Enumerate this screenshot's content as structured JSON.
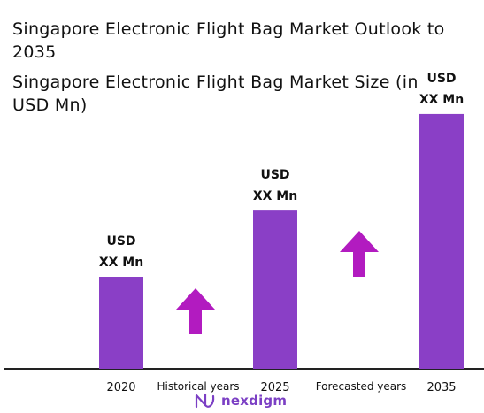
{
  "title": "Singapore Electronic Flight Bag Market Outlook to 2035",
  "subtitle": "Singapore Electronic Flight Bag Market Size (in USD Mn)",
  "colors": {
    "bar": "#8a3fc6",
    "arrow": "#b21bc0",
    "axis": "#222222"
  },
  "brand": {
    "name": "nexdigm",
    "icon": "nexdigm-logo-icon"
  },
  "chart_data": {
    "type": "bar",
    "categories": [
      "2020",
      "2025",
      "2035"
    ],
    "values": [
      1.0,
      1.72,
      2.77
    ],
    "value_unit": "relative height (actual values not disclosed)",
    "bar_labels": [
      [
        "USD",
        "XX Mn"
      ],
      [
        "USD",
        "XX Mn"
      ],
      [
        "USD",
        "XX Mn"
      ]
    ],
    "period_labels": [
      "Historical years",
      "Forecasted years"
    ],
    "growth_arrows": [
      "up-arrow-icon",
      "up-arrow-icon"
    ],
    "title": "Singapore Electronic Flight Bag Market Outlook to 2035",
    "subtitle": "Singapore Electronic Flight Bag Market Size (in USD Mn)",
    "xlabel": "",
    "ylabel": "",
    "grid": false,
    "legend": "none"
  }
}
